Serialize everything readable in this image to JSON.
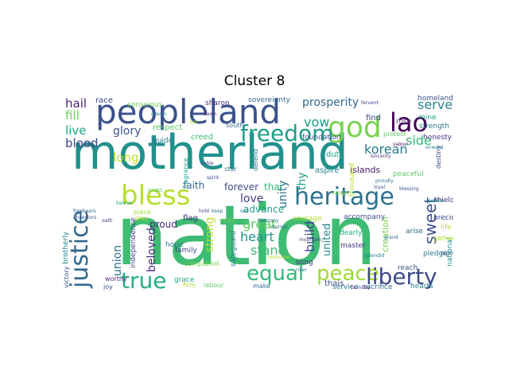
{
  "title": "Cluster 8",
  "words": [
    {
      "text": "motherland",
      "color": "#21918c"
    },
    {
      "text": "nation",
      "color": "#3fbc73"
    },
    {
      "text": "peopleland",
      "color": "#3b528b"
    },
    {
      "text": "god",
      "color": "#7ad151"
    },
    {
      "text": "lao",
      "color": "#440154"
    },
    {
      "text": "freedom",
      "color": "#1f9e89"
    },
    {
      "text": "bless",
      "color": "#b5de2b"
    },
    {
      "text": "heritage",
      "color": "#2c728e"
    },
    {
      "text": "justice",
      "color": "#31688e"
    },
    {
      "text": "equal",
      "color": "#35b779"
    },
    {
      "text": "peace",
      "color": "#a0da39"
    },
    {
      "text": "liberty",
      "color": "#3e4989"
    },
    {
      "text": "true",
      "color": "#28ae80"
    },
    {
      "text": "prosperity",
      "color": "#31688e"
    },
    {
      "text": "serve",
      "color": "#26828e"
    },
    {
      "text": "korean",
      "color": "#2a788e"
    },
    {
      "text": "side",
      "color": "#35b779"
    },
    {
      "text": "vow",
      "color": "#1f9e89"
    },
    {
      "text": "hail",
      "color": "#482475"
    },
    {
      "text": "fill",
      "color": "#6ece58"
    },
    {
      "text": "live",
      "color": "#22a884"
    },
    {
      "text": "blood",
      "color": "#414487"
    },
    {
      "text": "glory",
      "color": "#3b528b"
    },
    {
      "text": "long",
      "color": "#bddf26"
    },
    {
      "text": "union",
      "color": "#2c728e"
    },
    {
      "text": "beloved",
      "color": "#472c7a"
    },
    {
      "text": "strong",
      "color": "#b8de29"
    },
    {
      "text": "love",
      "color": "#433e85"
    },
    {
      "text": "great",
      "color": "#5ec962"
    },
    {
      "text": "heart",
      "color": "#1f948c"
    },
    {
      "text": "stand",
      "color": "#3dbc74"
    },
    {
      "text": "unity",
      "color": "#2d708e"
    },
    {
      "text": "build",
      "color": "#3e4c8a"
    },
    {
      "text": "united",
      "color": "#25858e"
    },
    {
      "text": "sweet",
      "color": "#3b528b"
    },
    {
      "text": "thy",
      "color": "#1fa088"
    },
    {
      "text": "forever",
      "color": "#3e4989"
    },
    {
      "text": "faith",
      "color": "#31688e"
    },
    {
      "text": "thai",
      "color": "#35b779"
    },
    {
      "text": "advance",
      "color": "#1f9e89"
    },
    {
      "text": "proud",
      "color": "#482677"
    },
    {
      "text": "race",
      "color": "#404688"
    },
    {
      "text": "conscious",
      "color": "#6ece58"
    },
    {
      "text": "sharon",
      "color": "#46337e"
    },
    {
      "text": "sovereignty",
      "color": "#31688e"
    },
    {
      "text": "homeland",
      "color": "#3b528b"
    },
    {
      "text": "mine",
      "color": "#20a386"
    },
    {
      "text": "strength",
      "color": "#2a788e"
    },
    {
      "text": "honesty",
      "color": "#46327e"
    },
    {
      "text": "foundation",
      "color": "#3b528b"
    },
    {
      "text": "respect",
      "color": "#5ec962"
    },
    {
      "text": "creed",
      "color": "#3dbc74"
    },
    {
      "text": "guide",
      "color": "#2a788e"
    },
    {
      "text": "rose",
      "color": "#472d7b"
    },
    {
      "text": "south",
      "color": "#31688e"
    },
    {
      "text": "find",
      "color": "#3e4989"
    },
    {
      "text": "duty",
      "color": "#1f9e89"
    },
    {
      "text": "aspire",
      "color": "#26828e"
    },
    {
      "text": "islands",
      "color": "#48186a"
    },
    {
      "text": "peaceful",
      "color": "#5ec962"
    },
    {
      "text": "courage",
      "color": "#b5de2b"
    },
    {
      "text": "accompany",
      "color": "#3b528b"
    },
    {
      "text": "dearly",
      "color": "#22a884"
    },
    {
      "text": "master",
      "color": "#46337e"
    },
    {
      "text": "creation",
      "color": "#7ad151"
    },
    {
      "text": "arise",
      "color": "#31688e"
    },
    {
      "text": "precious",
      "color": "#3e4989"
    },
    {
      "text": "shield",
      "color": "#472d7b"
    },
    {
      "text": "life",
      "color": "#b8de29"
    },
    {
      "text": "pledge",
      "color": "#2c728e"
    },
    {
      "text": "national",
      "color": "#21918c"
    },
    {
      "text": "reach",
      "color": "#3b528b"
    },
    {
      "text": "hearts",
      "color": "#26828e"
    },
    {
      "text": "sacrifice",
      "color": "#31688e"
    },
    {
      "text": "service",
      "color": "#2a788e"
    },
    {
      "text": "thais",
      "color": "#3e4989"
    },
    {
      "text": "song",
      "color": "#46327e"
    },
    {
      "text": "make",
      "color": "#2c728e"
    },
    {
      "text": "labour",
      "color": "#5ec962"
    },
    {
      "text": "firm",
      "color": "#b5de2b"
    },
    {
      "text": "grace",
      "color": "#22a884"
    },
    {
      "text": "family",
      "color": "#414487"
    },
    {
      "text": "hope",
      "color": "#2a788e"
    },
    {
      "text": "independence",
      "color": "#433e85"
    },
    {
      "text": "joy",
      "color": "#3b528b"
    },
    {
      "text": "worthy",
      "color": "#482475"
    },
    {
      "text": "brotherly",
      "color": "#26828e"
    },
    {
      "text": "victory",
      "color": "#3b528b"
    },
    {
      "text": "flag",
      "color": "#472c7a"
    },
    {
      "text": "fragrance",
      "color": "#1f9e89"
    },
    {
      "text": "safeguard",
      "color": "#2a788e"
    },
    {
      "text": "compatriot",
      "color": "#7ad151"
    },
    {
      "text": "defend",
      "color": "#2c728e"
    },
    {
      "text": "destiny",
      "color": "#3e4989"
    },
    {
      "text": "thousand",
      "color": "#b8de29"
    },
    {
      "text": "protect",
      "color": "#5ec962"
    },
    {
      "text": "gather",
      "color": "#b5de2b"
    },
    {
      "text": "nigerian",
      "color": "#31688e"
    },
    {
      "text": "place",
      "color": "#a0da39"
    },
    {
      "text": "stay",
      "color": "#b5de2b"
    },
    {
      "text": "reign",
      "color": "#7ad151"
    },
    {
      "text": "star",
      "color": "#2c728e"
    },
    {
      "text": "fervent",
      "color": "#3e4989"
    },
    {
      "text": "onward",
      "color": "#2a788e"
    },
    {
      "text": "golden",
      "color": "#1f9e89"
    },
    {
      "text": "humility",
      "color": "#46327e"
    },
    {
      "text": "grand",
      "color": "#31688e"
    },
    {
      "text": "loyal",
      "color": "#3b528b"
    },
    {
      "text": "valour",
      "color": "#440154"
    },
    {
      "text": "dream",
      "color": "#2a788e"
    },
    {
      "text": "noble",
      "color": "#433e85"
    },
    {
      "text": "spirit",
      "color": "#3e4989"
    },
    {
      "text": "proudly",
      "color": "#2c728e"
    },
    {
      "text": "sincerity",
      "color": "#46327e"
    },
    {
      "text": "harmony",
      "color": "#31688e"
    },
    {
      "text": "wealth",
      "color": "#7ad151"
    },
    {
      "text": "splendid",
      "color": "#2a788e"
    },
    {
      "text": "tomorrow",
      "color": "#b5de2b"
    },
    {
      "text": "bright",
      "color": "#5ec962"
    },
    {
      "text": "dawn",
      "color": "#472d7b"
    },
    {
      "text": "sun",
      "color": "#b8de29"
    },
    {
      "text": "sea",
      "color": "#26828e"
    },
    {
      "text": "mountain",
      "color": "#3e4989"
    },
    {
      "text": "river",
      "color": "#2c728e"
    },
    {
      "text": "forebears",
      "color": "#31688e"
    },
    {
      "text": "ancestors",
      "color": "#3b528b"
    },
    {
      "text": "oath",
      "color": "#46327e"
    },
    {
      "text": "banner",
      "color": "#1f9e89"
    },
    {
      "text": "hold",
      "color": "#414487"
    },
    {
      "text": "keep",
      "color": "#2a788e"
    },
    {
      "text": "eternal",
      "color": "#31688e"
    },
    {
      "text": "blessing",
      "color": "#3b528b"
    }
  ]
}
